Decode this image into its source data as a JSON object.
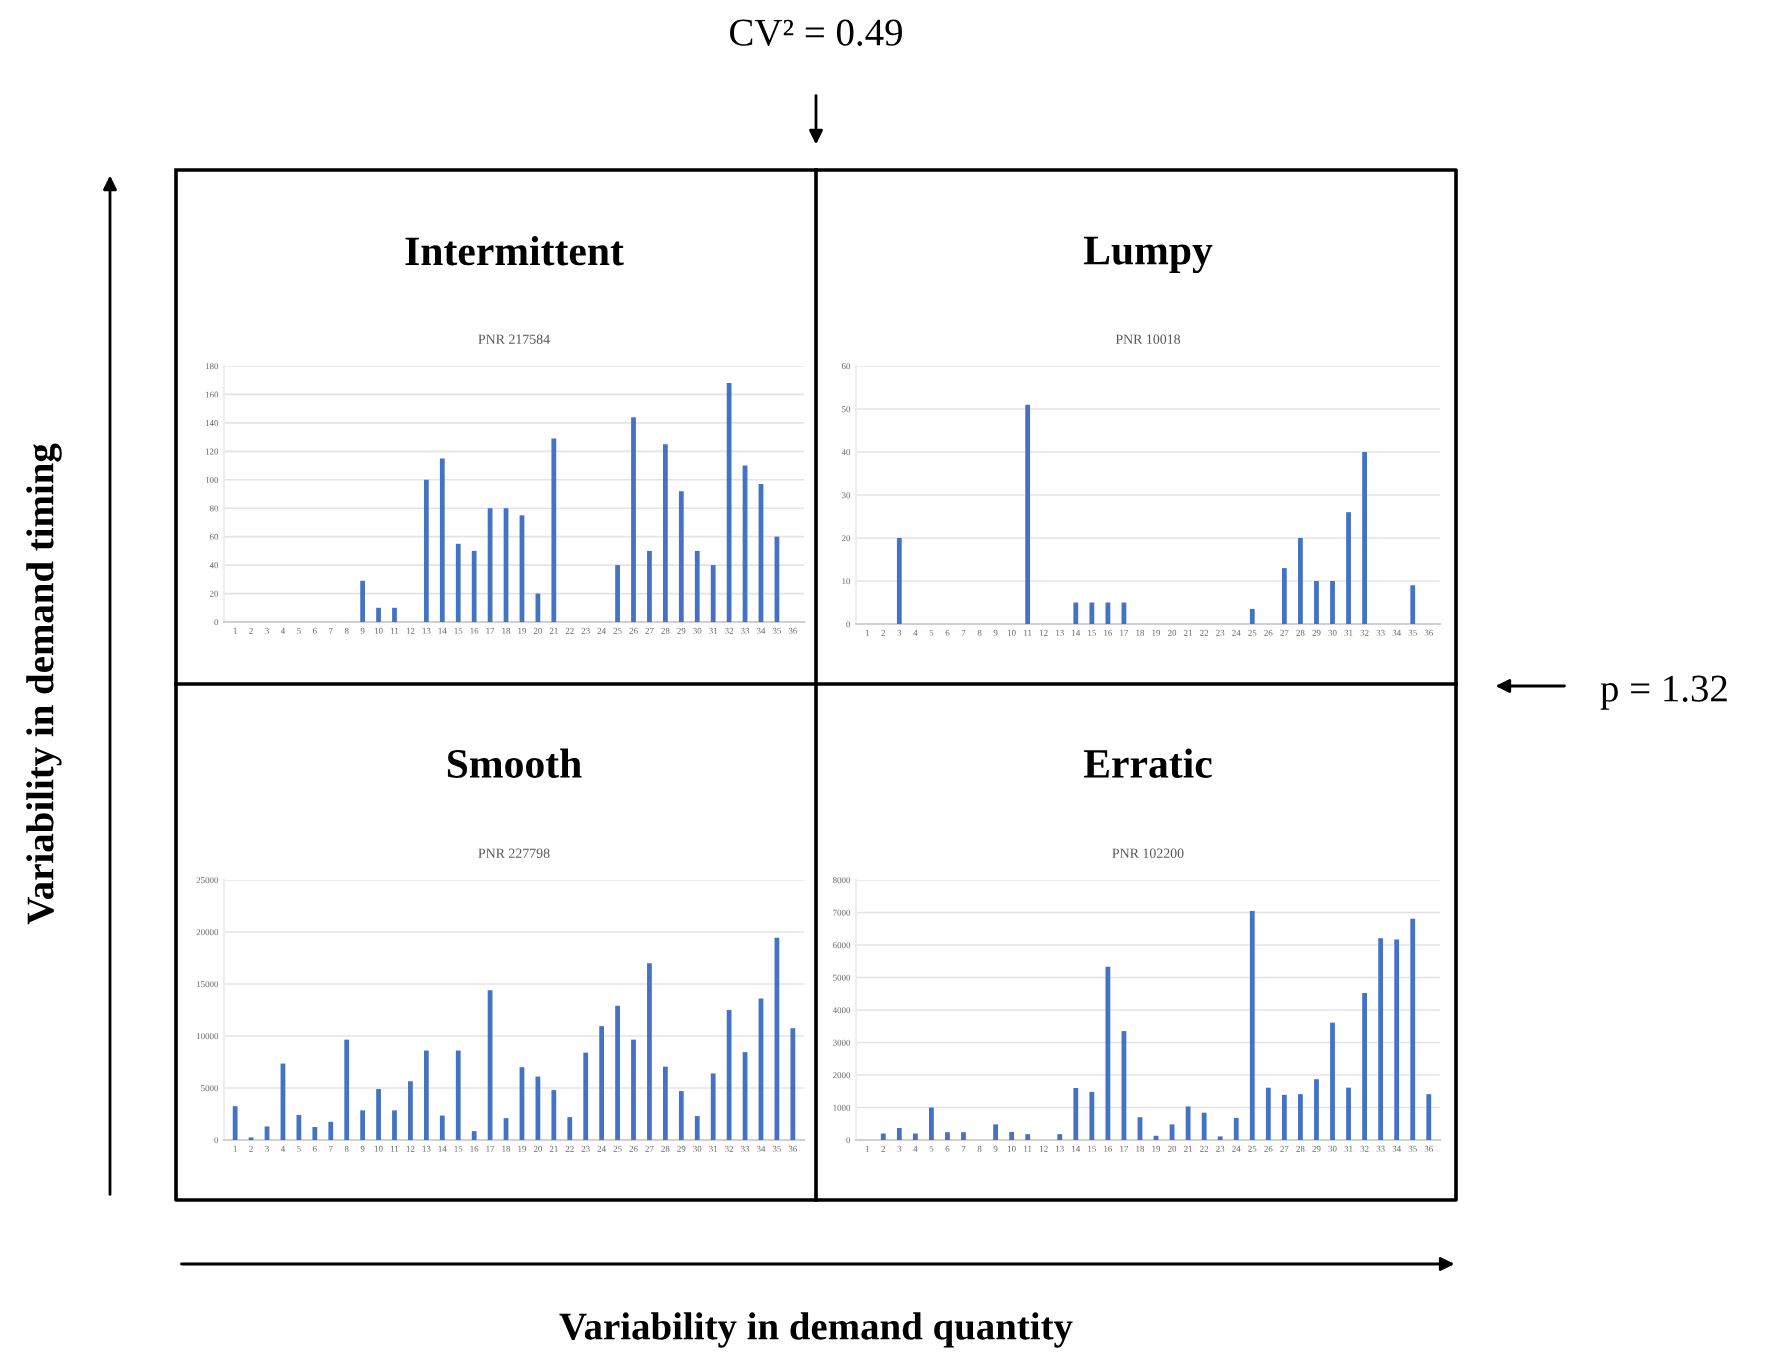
{
  "chart_data": [
    {
      "type": "bar",
      "title": "Intermittent",
      "subtitle": "PNR 217584",
      "color": "#4472c4",
      "grid": "y",
      "ylim": [
        0,
        180
      ],
      "yticks": [
        0,
        20,
        40,
        60,
        80,
        100,
        120,
        140,
        160,
        180
      ],
      "categories": [
        "1",
        "2",
        "3",
        "4",
        "5",
        "6",
        "7",
        "8",
        "9",
        "10",
        "11",
        "12",
        "13",
        "14",
        "15",
        "16",
        "17",
        "18",
        "19",
        "20",
        "21",
        "22",
        "23",
        "24",
        "25",
        "26",
        "27",
        "28",
        "29",
        "30",
        "31",
        "32",
        "33",
        "34",
        "35",
        "36"
      ],
      "values": [
        0,
        0,
        0,
        0,
        0,
        0,
        0,
        0,
        29,
        10,
        10,
        0,
        100,
        115,
        55,
        50,
        80,
        80,
        75,
        20,
        129,
        0,
        0,
        0,
        40,
        144,
        50,
        125,
        92,
        50,
        40,
        168,
        110,
        97,
        60,
        0
      ]
    },
    {
      "type": "bar",
      "title": "Lumpy",
      "subtitle": "PNR 10018",
      "color": "#4472c4",
      "grid": "y",
      "ylim": [
        0,
        60
      ],
      "yticks": [
        0,
        10,
        20,
        30,
        40,
        50,
        60
      ],
      "categories": [
        "1",
        "2",
        "3",
        "4",
        "5",
        "6",
        "7",
        "8",
        "9",
        "10",
        "11",
        "12",
        "13",
        "14",
        "15",
        "16",
        "17",
        "18",
        "19",
        "20",
        "21",
        "22",
        "23",
        "24",
        "25",
        "26",
        "27",
        "28",
        "29",
        "30",
        "31",
        "32",
        "33",
        "34",
        "35",
        "36"
      ],
      "values": [
        0,
        0,
        20,
        0,
        0,
        0,
        0,
        0,
        0,
        0,
        51,
        0,
        0,
        5,
        5,
        5,
        5,
        0,
        0,
        0,
        0,
        0,
        0,
        0,
        3.5,
        0,
        13,
        20,
        10,
        10,
        26,
        40,
        0,
        0,
        9,
        0
      ]
    },
    {
      "type": "bar",
      "title": "Smooth",
      "subtitle": "PNR 227798",
      "color": "#4472c4",
      "grid": "y",
      "ylim": [
        0,
        25000
      ],
      "yticks": [
        0,
        5000,
        10000,
        15000,
        20000,
        25000
      ],
      "categories": [
        "1",
        "2",
        "3",
        "4",
        "5",
        "6",
        "7",
        "8",
        "9",
        "10",
        "11",
        "12",
        "13",
        "14",
        "15",
        "16",
        "17",
        "18",
        "19",
        "20",
        "21",
        "22",
        "23",
        "24",
        "25",
        "26",
        "27",
        "28",
        "29",
        "30",
        "31",
        "32",
        "33",
        "34",
        "35",
        "36"
      ],
      "values": [
        3250,
        250,
        1300,
        7350,
        2400,
        1250,
        1750,
        9650,
        2850,
        4900,
        2850,
        5650,
        8600,
        2350,
        8600,
        850,
        14400,
        2100,
        7000,
        6100,
        4800,
        2200,
        8400,
        10950,
        12900,
        9650,
        17000,
        7050,
        4700,
        2300,
        6400,
        12500,
        8450,
        13600,
        19450,
        10750
      ]
    },
    {
      "type": "bar",
      "title": "Erratic",
      "subtitle": "PNR 102200",
      "color": "#4472c4",
      "grid": "y",
      "ylim": [
        0,
        8000
      ],
      "yticks": [
        0,
        1000,
        2000,
        3000,
        4000,
        5000,
        6000,
        7000,
        8000
      ],
      "categories": [
        "1",
        "2",
        "3",
        "4",
        "5",
        "6",
        "7",
        "8",
        "9",
        "10",
        "11",
        "12",
        "13",
        "14",
        "15",
        "16",
        "17",
        "18",
        "19",
        "20",
        "21",
        "22",
        "23",
        "24",
        "25",
        "26",
        "27",
        "28",
        "29",
        "30",
        "31",
        "32",
        "33",
        "34",
        "35",
        "36"
      ],
      "values": [
        0,
        200,
        370,
        200,
        1000,
        240,
        240,
        0,
        480,
        250,
        180,
        0,
        180,
        1600,
        1480,
        5330,
        3350,
        700,
        130,
        480,
        1030,
        840,
        110,
        680,
        7050,
        1610,
        1390,
        1410,
        1870,
        3610,
        1610,
        4520,
        6210,
        6170,
        6810,
        1410
      ]
    },
    {
      "type": "other",
      "xlabel": "Variability in demand quantity",
      "ylabel": "Variability in demand timing",
      "annotations": [
        "CV² = 0.49",
        "p = 1.32"
      ]
    }
  ]
}
